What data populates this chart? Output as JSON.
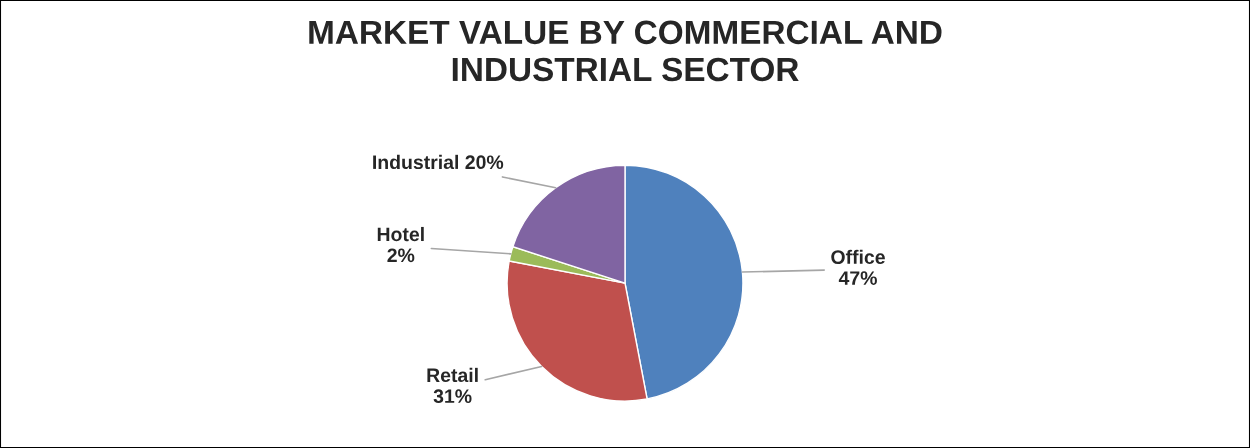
{
  "chart_data": {
    "type": "pie",
    "title": "MARKET VALUE BY COMMERCIAL AND\nINDUSTRIAL SECTOR",
    "categories": [
      "Office",
      "Retail",
      "Hotel",
      "Industrial"
    ],
    "values": [
      47,
      31,
      2,
      20
    ],
    "colors": [
      "#4f81bd",
      "#c0504d",
      "#9bbb59",
      "#8064a2"
    ],
    "value_labels": [
      "47%",
      "31%",
      "2%",
      "20%"
    ],
    "legend": false
  }
}
